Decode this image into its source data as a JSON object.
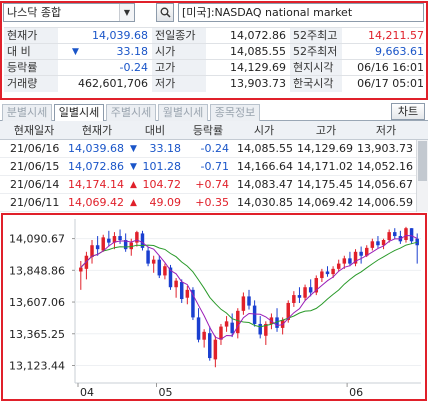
{
  "search": {
    "market_select": "나스닥 종합",
    "search_icon": "magnifier-icon",
    "instrument_name": "[미국]:NASDAQ national market"
  },
  "quote": {
    "current_label": "현재가",
    "current_value": "14,039.68",
    "change_label": "대 비",
    "change_arrow": "▼",
    "change_value": "33.18",
    "rate_label": "등락률",
    "rate_value": "-0.24",
    "volume_label": "거래량",
    "volume_value": "462,601,706",
    "prev_close_label": "전일종가",
    "prev_close_value": "14,072.86",
    "open_label": "시가",
    "open_value": "14,085.55",
    "high_label": "고가",
    "high_value": "14,129.69",
    "low_label": "저가",
    "low_value": "13,903.73",
    "w52_high_label": "52주최고",
    "w52_high_value": "14,211.57",
    "w52_low_label": "52주최저",
    "w52_low_value": "9,663.61",
    "local_time_label": "현지시각",
    "local_time_value": "06/16 16:01",
    "korea_time_label": "한국시각",
    "korea_time_value": "06/17 05:01"
  },
  "tabs": {
    "items": [
      "분별시세",
      "일별시세",
      "주별시세",
      "월별시세",
      "종목정보"
    ],
    "active_index": 1,
    "chart_button": "차트"
  },
  "table": {
    "headers": [
      "현재일자",
      "현재가",
      "대비",
      "등락률",
      "시가",
      "고가",
      "저가"
    ],
    "rows": [
      {
        "date": "21/06/16",
        "price": "14,039.68",
        "dir": "down",
        "change": "33.18",
        "rate": "-0.24",
        "open": "14,085.55",
        "high": "14,129.69",
        "low": "13,903.73"
      },
      {
        "date": "21/06/15",
        "price": "14,072.86",
        "dir": "down",
        "change": "101.28",
        "rate": "-0.71",
        "open": "14,166.64",
        "high": "14,171.02",
        "low": "14,052.16"
      },
      {
        "date": "21/06/14",
        "price": "14,174.14",
        "dir": "up",
        "change": "104.72",
        "rate": "+0.74",
        "open": "14,083.47",
        "high": "14,175.45",
        "low": "14,056.67"
      },
      {
        "date": "21/06/11",
        "price": "14,069.42",
        "dir": "up",
        "change": "49.09",
        "rate": "+0.35",
        "open": "14,030.85",
        "high": "14,069.42",
        "low": "14,006.59"
      }
    ]
  },
  "chart_data": {
    "type": "candlestick",
    "y_ticks": [
      "14,090.67",
      "13,848.86",
      "13,607.06",
      "13,365.25",
      "13,123.44"
    ],
    "y_tick_values": [
      14090.67,
      13848.86,
      13607.06,
      13365.25,
      13123.44
    ],
    "ylim": [
      12990,
      14240
    ],
    "x_labels": [
      "04",
      "05",
      "06"
    ],
    "x_label_index": [
      0,
      14,
      48
    ],
    "colors": {
      "up": "#e0202a",
      "down": "#1a3fd0",
      "ma_short": "#9b1fb8",
      "ma_long": "#2a9a2a",
      "wick": "#333333"
    },
    "candles": [
      {
        "o": 13840,
        "h": 13920,
        "l": 13700,
        "c": 13870
      },
      {
        "o": 13860,
        "h": 13990,
        "l": 13780,
        "c": 13960
      },
      {
        "o": 13950,
        "h": 14080,
        "l": 13900,
        "c": 14040
      },
      {
        "o": 14040,
        "h": 14110,
        "l": 13960,
        "c": 14010
      },
      {
        "o": 14000,
        "h": 14120,
        "l": 13990,
        "c": 14100
      },
      {
        "o": 14090,
        "h": 14150,
        "l": 14030,
        "c": 14060
      },
      {
        "o": 14060,
        "h": 14140,
        "l": 14010,
        "c": 14110
      },
      {
        "o": 14110,
        "h": 14160,
        "l": 14050,
        "c": 14080
      },
      {
        "o": 14080,
        "h": 14130,
        "l": 13990,
        "c": 14010
      },
      {
        "o": 14010,
        "h": 14090,
        "l": 13960,
        "c": 14060
      },
      {
        "o": 14060,
        "h": 14150,
        "l": 14030,
        "c": 14140
      },
      {
        "o": 14130,
        "h": 14150,
        "l": 14000,
        "c": 14020
      },
      {
        "o": 14000,
        "h": 14030,
        "l": 13880,
        "c": 13900
      },
      {
        "o": 13900,
        "h": 13960,
        "l": 13830,
        "c": 13930
      },
      {
        "o": 13930,
        "h": 13960,
        "l": 13790,
        "c": 13810
      },
      {
        "o": 13810,
        "h": 13900,
        "l": 13780,
        "c": 13880
      },
      {
        "o": 13870,
        "h": 13890,
        "l": 13700,
        "c": 13720
      },
      {
        "o": 13720,
        "h": 13790,
        "l": 13640,
        "c": 13770
      },
      {
        "o": 13760,
        "h": 13780,
        "l": 13600,
        "c": 13630
      },
      {
        "o": 13640,
        "h": 13730,
        "l": 13590,
        "c": 13700
      },
      {
        "o": 13700,
        "h": 13720,
        "l": 13470,
        "c": 13490
      },
      {
        "o": 13490,
        "h": 13560,
        "l": 13300,
        "c": 13320
      },
      {
        "o": 13320,
        "h": 13400,
        "l": 13260,
        "c": 13380
      },
      {
        "o": 13370,
        "h": 13420,
        "l": 13160,
        "c": 13180
      },
      {
        "o": 13170,
        "h": 13350,
        "l": 13110,
        "c": 13320
      },
      {
        "o": 13320,
        "h": 13440,
        "l": 13280,
        "c": 13420
      },
      {
        "o": 13420,
        "h": 13500,
        "l": 13380,
        "c": 13460
      },
      {
        "o": 13450,
        "h": 13520,
        "l": 13340,
        "c": 13370
      },
      {
        "o": 13370,
        "h": 13560,
        "l": 13330,
        "c": 13540
      },
      {
        "o": 13540,
        "h": 13680,
        "l": 13510,
        "c": 13650
      },
      {
        "o": 13650,
        "h": 13700,
        "l": 13550,
        "c": 13580
      },
      {
        "o": 13580,
        "h": 13620,
        "l": 13420,
        "c": 13440
      },
      {
        "o": 13440,
        "h": 13500,
        "l": 13330,
        "c": 13360
      },
      {
        "o": 13350,
        "h": 13460,
        "l": 13280,
        "c": 13440
      },
      {
        "o": 13440,
        "h": 13520,
        "l": 13400,
        "c": 13490
      },
      {
        "o": 13490,
        "h": 13560,
        "l": 13380,
        "c": 13410
      },
      {
        "o": 13410,
        "h": 13490,
        "l": 13360,
        "c": 13470
      },
      {
        "o": 13470,
        "h": 13620,
        "l": 13450,
        "c": 13600
      },
      {
        "o": 13600,
        "h": 13690,
        "l": 13570,
        "c": 13660
      },
      {
        "o": 13660,
        "h": 13720,
        "l": 13600,
        "c": 13640
      },
      {
        "o": 13640,
        "h": 13740,
        "l": 13620,
        "c": 13720
      },
      {
        "o": 13720,
        "h": 13780,
        "l": 13650,
        "c": 13680
      },
      {
        "o": 13680,
        "h": 13810,
        "l": 13660,
        "c": 13790
      },
      {
        "o": 13790,
        "h": 13860,
        "l": 13760,
        "c": 13840
      },
      {
        "o": 13840,
        "h": 13880,
        "l": 13800,
        "c": 13820
      },
      {
        "o": 13820,
        "h": 13880,
        "l": 13790,
        "c": 13860
      },
      {
        "o": 13860,
        "h": 13930,
        "l": 13840,
        "c": 13900
      },
      {
        "o": 13900,
        "h": 13960,
        "l": 13860,
        "c": 13940
      },
      {
        "o": 13940,
        "h": 13990,
        "l": 13880,
        "c": 13900
      },
      {
        "o": 13900,
        "h": 14010,
        "l": 13880,
        "c": 13990
      },
      {
        "o": 13990,
        "h": 14030,
        "l": 13900,
        "c": 13960
      },
      {
        "o": 13960,
        "h": 14040,
        "l": 13950,
        "c": 14020
      },
      {
        "o": 14020,
        "h": 14090,
        "l": 14000,
        "c": 14070
      },
      {
        "o": 14070,
        "h": 14110,
        "l": 14020,
        "c": 14040
      },
      {
        "o": 14040,
        "h": 14090,
        "l": 14010,
        "c": 14080
      },
      {
        "o": 14080,
        "h": 14160,
        "l": 14060,
        "c": 14140
      },
      {
        "o": 14140,
        "h": 14170,
        "l": 14090,
        "c": 14110
      },
      {
        "o": 14110,
        "h": 14150,
        "l": 14050,
        "c": 14070
      },
      {
        "o": 14080,
        "h": 14180,
        "l": 14060,
        "c": 14170
      },
      {
        "o": 14170,
        "h": 14170,
        "l": 14050,
        "c": 14070
      },
      {
        "o": 14090,
        "h": 14130,
        "l": 13900,
        "c": 14040
      }
    ]
  }
}
